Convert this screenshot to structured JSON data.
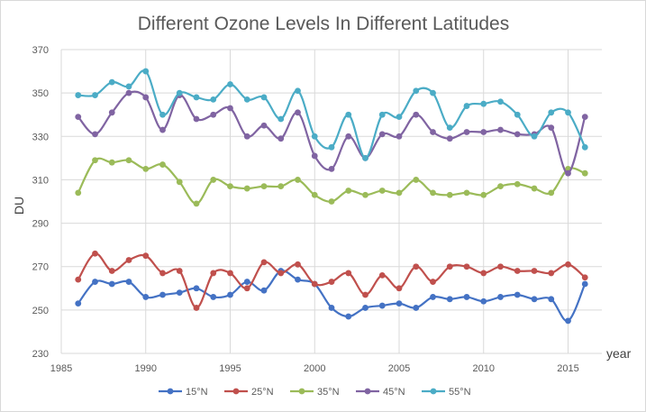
{
  "chart_data": {
    "type": "line",
    "title": "Different Ozone Levels In Different Latitudes",
    "xlabel": "year",
    "ylabel": "DU",
    "xlim": [
      1985,
      2017
    ],
    "ylim": [
      230,
      370
    ],
    "xticks": [
      1985,
      1990,
      1995,
      2000,
      2005,
      2010,
      2015
    ],
    "yticks": [
      230,
      250,
      270,
      290,
      310,
      330,
      350,
      370
    ],
    "grid": true,
    "legend_position": "bottom",
    "x": [
      1986,
      1987,
      1988,
      1989,
      1990,
      1991,
      1992,
      1993,
      1994,
      1995,
      1996,
      1997,
      1998,
      1999,
      2000,
      2001,
      2002,
      2003,
      2004,
      2005,
      2006,
      2007,
      2008,
      2009,
      2010,
      2011,
      2012,
      2013,
      2014,
      2015,
      2016
    ],
    "series": [
      {
        "name": "15°N",
        "color": "#4472c4",
        "values": [
          253,
          263,
          262,
          263,
          256,
          257,
          258,
          260,
          256,
          257,
          263,
          259,
          268,
          264,
          262,
          251,
          247,
          251,
          252,
          253,
          251,
          256,
          255,
          256,
          254,
          256,
          257,
          255,
          255,
          245,
          262
        ]
      },
      {
        "name": "25°N",
        "color": "#c0504d",
        "values": [
          264,
          276,
          268,
          273,
          275,
          267,
          268,
          251,
          267,
          267,
          260,
          272,
          267,
          271,
          262,
          263,
          267,
          257,
          266,
          260,
          270,
          263,
          270,
          270,
          267,
          270,
          268,
          268,
          267,
          271,
          265
        ]
      },
      {
        "name": "35°N",
        "color": "#9bbb59",
        "values": [
          304,
          319,
          318,
          319,
          315,
          317,
          309,
          299,
          310,
          307,
          306,
          307,
          307,
          310,
          303,
          300,
          305,
          303,
          305,
          304,
          310,
          304,
          303,
          304,
          303,
          307,
          308,
          306,
          304,
          315,
          313
        ]
      },
      {
        "name": "45°N",
        "color": "#8064a2",
        "values": [
          339,
          331,
          341,
          350,
          348,
          333,
          349,
          338,
          340,
          343,
          330,
          335,
          329,
          341,
          321,
          315,
          330,
          320,
          331,
          330,
          340,
          332,
          329,
          332,
          332,
          333,
          331,
          331,
          334,
          313,
          339
        ]
      },
      {
        "name": "55°N",
        "color": "#4bacc6",
        "values": [
          349,
          349,
          355,
          353,
          360,
          340,
          350,
          348,
          347,
          354,
          347,
          348,
          338,
          351,
          330,
          325,
          340,
          320,
          340,
          339,
          351,
          350,
          334,
          344,
          345,
          346,
          340,
          330,
          341,
          341,
          325
        ]
      }
    ]
  }
}
